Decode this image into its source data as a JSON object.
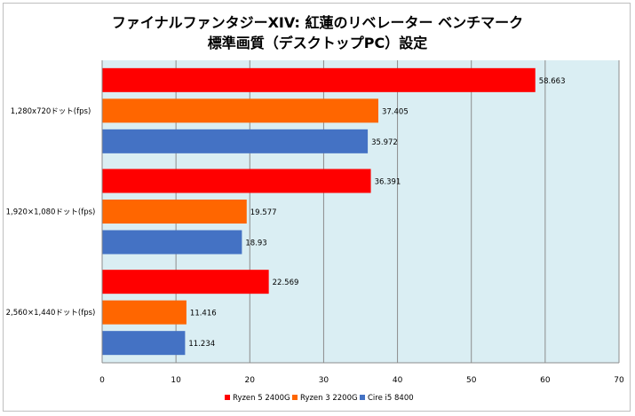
{
  "chart_data": {
    "type": "bar",
    "orientation": "horizontal",
    "title": "ファイナルファンタジーXIV: 紅蓮のリベレーター ベンチマーク",
    "subtitle": "標準画質（デスクトップPC）設定",
    "categories": [
      "1,280x720ドット(fps)",
      "1,920×1,080ドット(fps)",
      "2,560×1,440ドット(fps)"
    ],
    "series": [
      {
        "name": "Ryzen 5 2400G",
        "color": "#ff0000",
        "values": [
          58.663,
          36.391,
          22.569
        ]
      },
      {
        "name": "Ryzen 3 2200G",
        "color": "#ff6600",
        "values": [
          37.405,
          19.577,
          11.416
        ]
      },
      {
        "name": "Cire i5 8400",
        "color": "#4472c4",
        "values": [
          35.972,
          18.93,
          11.234
        ]
      }
    ],
    "value_labels": [
      [
        "58.663",
        "36.391",
        "22.569"
      ],
      [
        "37.405",
        "19.577",
        "11.416"
      ],
      [
        "35.972",
        "18.93",
        "11.234"
      ]
    ],
    "xlim": [
      0,
      70
    ],
    "xticks": [
      "0",
      "10",
      "20",
      "30",
      "40",
      "50",
      "60",
      "70"
    ],
    "grid": true,
    "legend_position": "bottom",
    "plot_background": "#daeef3"
  }
}
